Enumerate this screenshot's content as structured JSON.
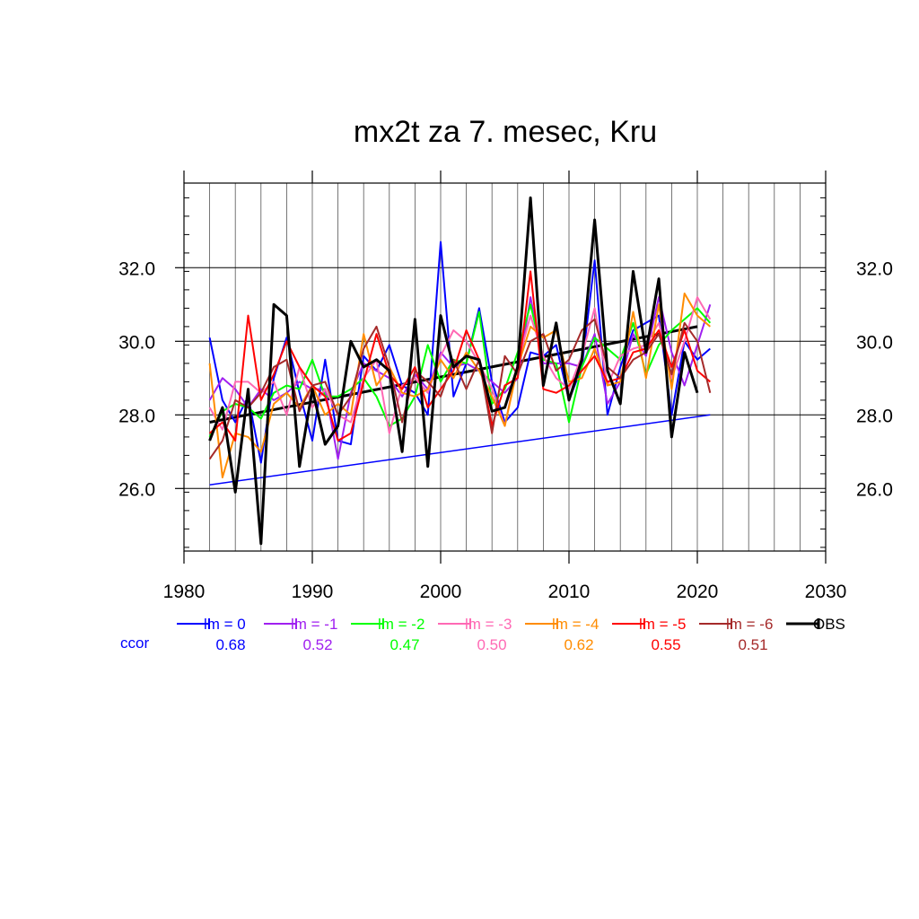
{
  "chart_data": {
    "type": "line",
    "title": "mx2t za 7. mesec, Kru",
    "xlabel": "",
    "ylabel": "",
    "xlim": [
      1980,
      2030
    ],
    "ylim": [
      24.3,
      34.3
    ],
    "xticks": [
      "1980",
      "1990",
      "2000",
      "2010",
      "2020",
      "2030"
    ],
    "yticks": [
      "26.0",
      "28.0",
      "30.0",
      "32.0"
    ],
    "grid": true,
    "x": [
      1982,
      1983,
      1984,
      1985,
      1986,
      1987,
      1988,
      1989,
      1990,
      1991,
      1992,
      1993,
      1994,
      1995,
      1996,
      1997,
      1998,
      1999,
      2000,
      2001,
      2002,
      2003,
      2004,
      2005,
      2006,
      2007,
      2008,
      2009,
      2010,
      2011,
      2012,
      2013,
      2014,
      2015,
      2016,
      2017,
      2018,
      2019,
      2020,
      2021
    ],
    "series": [
      {
        "name": "lm = 0",
        "color": "#0000ff",
        "ccor": "0.68",
        "values": [
          30.1,
          28.4,
          27.8,
          28.5,
          26.7,
          29.0,
          30.1,
          28.6,
          27.3,
          29.5,
          27.3,
          27.2,
          29.6,
          29.2,
          29.9,
          28.8,
          28.6,
          28.0,
          32.7,
          28.5,
          29.4,
          30.9,
          28.9,
          27.8,
          28.2,
          29.7,
          29.6,
          29.9,
          28.4,
          29.3,
          32.2,
          28.0,
          29.3,
          30.3,
          30.5,
          30.7,
          28.0,
          30.0,
          29.5,
          29.8
        ]
      },
      {
        "name": "lm = -1",
        "color": "#a020f0",
        "ccor": "0.52",
        "values": [
          28.4,
          29.0,
          28.7,
          28.2,
          28.7,
          28.4,
          28.6,
          28.9,
          28.7,
          28.7,
          26.8,
          28.6,
          29.4,
          29.2,
          29.0,
          28.5,
          29.1,
          28.7,
          29.7,
          29.3,
          29.4,
          29.2,
          28.9,
          28.6,
          29.0,
          31.2,
          29.4,
          29.4,
          29.4,
          29.3,
          30.2,
          28.3,
          28.9,
          30.2,
          29.6,
          31.2,
          29.7,
          28.8,
          29.9,
          31.0
        ]
      },
      {
        "name": "lm = -2",
        "color": "#00ff00",
        "ccor": "0.47",
        "values": [
          27.4,
          28.1,
          28.3,
          28.2,
          27.9,
          28.6,
          28.8,
          28.7,
          29.5,
          28.5,
          28.5,
          28.7,
          29.0,
          28.5,
          27.7,
          27.9,
          28.5,
          29.9,
          28.9,
          29.5,
          29.4,
          30.8,
          28.3,
          28.7,
          29.7,
          31.0,
          29.5,
          29.4,
          27.8,
          29.3,
          30.1,
          29.8,
          29.5,
          30.5,
          29.1,
          29.9,
          30.3,
          30.6,
          30.9,
          30.5
        ]
      },
      {
        "name": "lm = -3",
        "color": "#ff69b4",
        "ccor": "0.50",
        "values": [
          28.2,
          27.6,
          28.9,
          28.9,
          28.6,
          28.9,
          28.0,
          29.3,
          28.2,
          28.7,
          28.0,
          27.8,
          29.0,
          29.5,
          27.5,
          28.8,
          29.0,
          28.6,
          29.6,
          30.3,
          30.0,
          29.4,
          28.7,
          27.7,
          29.4,
          30.7,
          29.6,
          29.0,
          28.7,
          29.6,
          30.9,
          28.8,
          29.6,
          29.8,
          29.9,
          30.5,
          29.0,
          30.0,
          31.2,
          30.6
        ]
      },
      {
        "name": "lm = -4",
        "color": "#ff8c00",
        "ccor": "0.62",
        "values": [
          29.4,
          26.3,
          27.5,
          27.4,
          27.0,
          28.3,
          28.6,
          28.2,
          28.8,
          28.0,
          28.3,
          28.0,
          30.2,
          28.8,
          29.3,
          28.6,
          28.5,
          28.7,
          29.5,
          29.0,
          29.7,
          29.2,
          28.5,
          27.7,
          29.3,
          30.4,
          30.1,
          30.3,
          28.9,
          29.0,
          29.8,
          28.8,
          28.9,
          30.8,
          29.0,
          31.0,
          28.7,
          31.3,
          30.7,
          30.4
        ]
      },
      {
        "name": "lm = -5",
        "color": "#ff0000",
        "ccor": "0.55",
        "values": [
          27.5,
          27.8,
          27.3,
          30.7,
          28.4,
          29.1,
          30.0,
          29.3,
          28.8,
          28.5,
          27.3,
          27.5,
          28.9,
          30.2,
          29.1,
          28.7,
          29.3,
          28.2,
          28.7,
          29.2,
          30.3,
          29.5,
          27.7,
          28.8,
          29.0,
          31.9,
          28.7,
          28.6,
          28.8,
          29.2,
          29.6,
          28.9,
          29.0,
          29.7,
          29.8,
          30.3,
          29.3,
          30.3,
          29.2,
          28.9
        ]
      },
      {
        "name": "lm = -6",
        "color": "#a52a2a",
        "ccor": "0.51",
        "values": [
          26.8,
          27.3,
          28.4,
          28.2,
          28.6,
          29.3,
          29.5,
          28.1,
          28.8,
          28.9,
          28.0,
          28.5,
          29.8,
          30.4,
          29.3,
          27.8,
          29.2,
          28.9,
          28.5,
          29.5,
          28.7,
          29.5,
          27.5,
          29.6,
          29.1,
          30.0,
          30.2,
          29.2,
          29.5,
          30.3,
          30.6,
          29.3,
          29.0,
          29.5,
          29.7,
          30.2,
          29.1,
          30.5,
          30.0,
          28.6
        ]
      },
      {
        "name": "OBS",
        "color": "#000000",
        "values": [
          27.3,
          28.2,
          25.9,
          28.7,
          24.5,
          31.0,
          30.7,
          26.6,
          28.7,
          27.2,
          27.7,
          30.0,
          29.3,
          29.5,
          29.2,
          27.0,
          30.6,
          26.6,
          30.7,
          29.3,
          29.6,
          29.5,
          28.1,
          28.2,
          29.3,
          33.9,
          28.8,
          30.5,
          28.4,
          29.5,
          33.3,
          29.2,
          28.3,
          31.9,
          29.7,
          31.7,
          27.4,
          29.7,
          28.6,
          null
        ]
      }
    ],
    "trend_lines": [
      {
        "series": "lm = 0",
        "color": "#0000ff",
        "x": [
          1982,
          2021
        ],
        "y": [
          26.1,
          28.0
        ]
      },
      {
        "series": "OBS",
        "color": "#000000",
        "x": [
          1982,
          2020
        ],
        "y": [
          27.8,
          30.4
        ]
      }
    ],
    "ccor_label": "ccor",
    "ccor_label_color": "#0000ff",
    "legend_placement": "bottom"
  }
}
